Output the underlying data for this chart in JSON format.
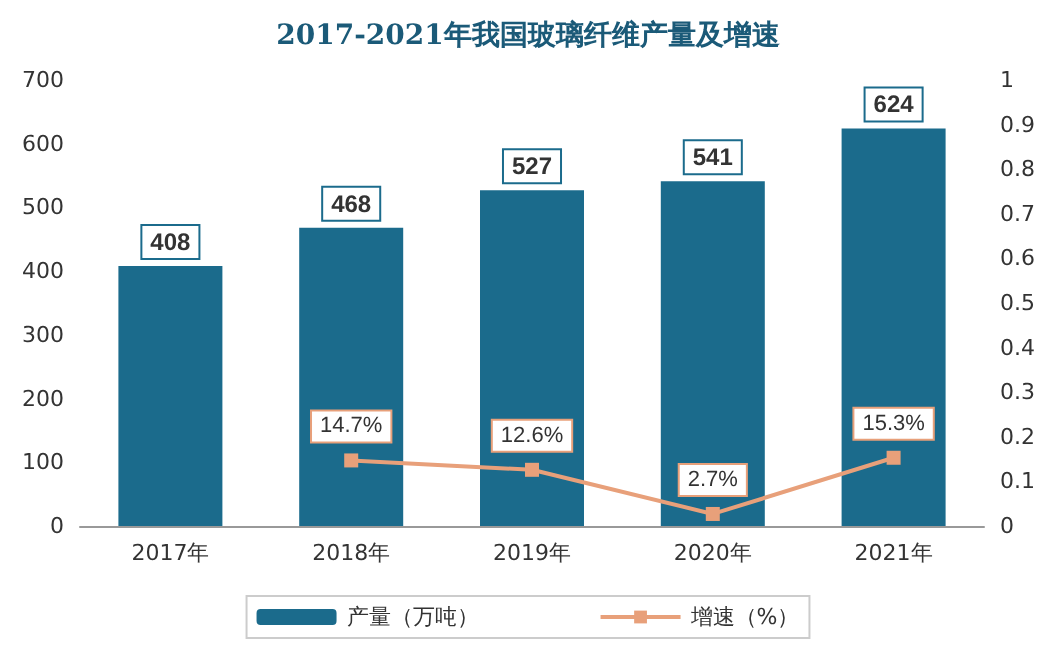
{
  "chart_data": {
    "type": "bar",
    "title": "2017-2021年我国玻璃纤维产量及增速",
    "categories": [
      "2017年",
      "2018年",
      "2019年",
      "2020年",
      "2021年"
    ],
    "series": [
      {
        "name": "产量（万吨）",
        "color": "#1b6b8c",
        "values": [
          408,
          468,
          527,
          541,
          624
        ],
        "value_labels": [
          "408",
          "468",
          "527",
          "541",
          "624"
        ]
      },
      {
        "name": "增速（%）",
        "type": "line",
        "axis": "y2",
        "color": "#e8a07a",
        "marker": "square",
        "values": [
          null,
          0.147,
          0.126,
          0.027,
          0.153
        ],
        "value_labels": [
          null,
          "14.7%",
          "12.6%",
          "2.7%",
          "15.3%"
        ]
      }
    ],
    "ylim": [
      0,
      700
    ],
    "yticks": [
      0,
      100,
      200,
      300,
      400,
      500,
      600,
      700
    ],
    "y2lim": [
      0,
      1
    ],
    "y2ticks": [
      0,
      0.1,
      0.2,
      0.3,
      0.4,
      0.5,
      0.6,
      0.7,
      0.8,
      0.9,
      1
    ],
    "grid": false,
    "legend": "bottom"
  }
}
